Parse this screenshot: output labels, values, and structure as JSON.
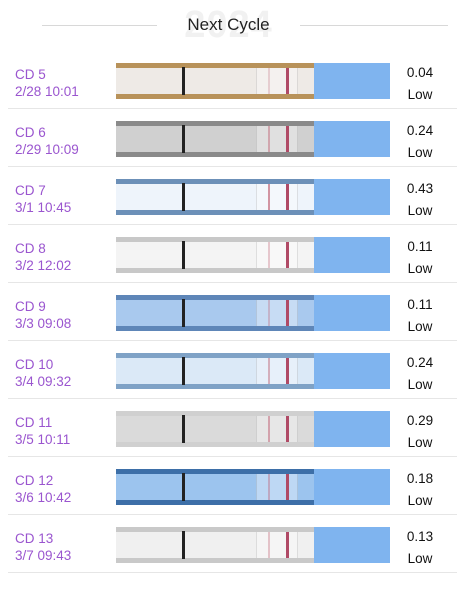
{
  "header": {
    "title": "Next Cycle",
    "watermark": "2024"
  },
  "rows": [
    {
      "cd": "CD 5",
      "date": "2/28 10:01",
      "value": 0.04,
      "level": "Low"
    },
    {
      "cd": "CD 6",
      "date": "2/29 10:09",
      "value": 0.24,
      "level": "Low"
    },
    {
      "cd": "CD 7",
      "date": "3/1 10:45",
      "value": 0.43,
      "level": "Low"
    },
    {
      "cd": "CD 8",
      "date": "3/2 12:02",
      "value": 0.11,
      "level": "Low"
    },
    {
      "cd": "CD 9",
      "date": "3/3 09:08",
      "value": 0.11,
      "level": "Low"
    },
    {
      "cd": "CD 10",
      "date": "3/4 09:32",
      "value": 0.24,
      "level": "Low"
    },
    {
      "cd": "CD 11",
      "date": "3/5 10:11",
      "value": 0.29,
      "level": "Low"
    },
    {
      "cd": "CD 12",
      "date": "3/6 10:42",
      "value": 0.18,
      "level": "Low"
    },
    {
      "cd": "CD 13",
      "date": "3/7 09:43",
      "value": 0.13,
      "level": "Low"
    }
  ]
}
